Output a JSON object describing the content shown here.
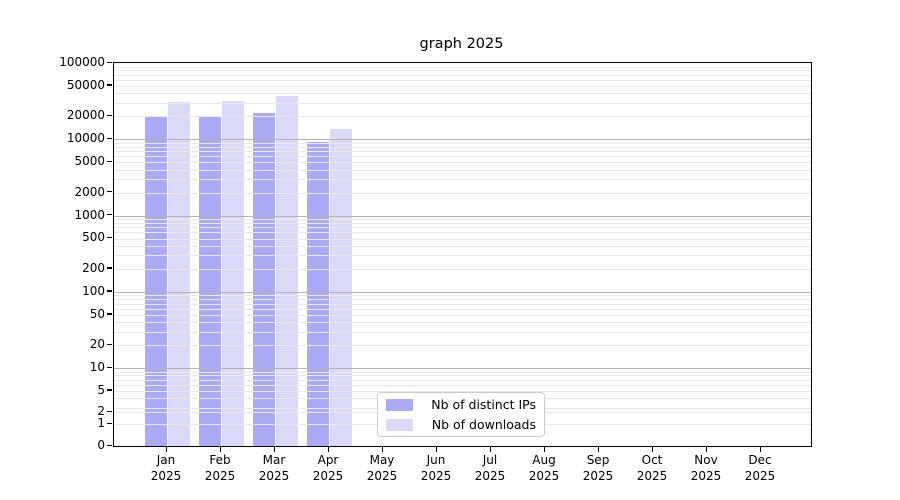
{
  "title": "graph 2025",
  "chart_data": {
    "type": "bar",
    "categories": [
      "Jan",
      "Feb",
      "Mar",
      "Apr",
      "May",
      "Jun",
      "Jul",
      "Aug",
      "Sep",
      "Oct",
      "Nov",
      "Dec"
    ],
    "x_year_sublabel": "2025",
    "series": [
      {
        "name": "Nb of distinct IPs",
        "color": "#aaaaf6",
        "values": [
          19600,
          19600,
          22200,
          9200,
          null,
          null,
          null,
          null,
          null,
          null,
          null,
          null
        ]
      },
      {
        "name": "Nb of downloads",
        "color": "#dadaf8",
        "values": [
          30400,
          31700,
          37200,
          13600,
          null,
          null,
          null,
          null,
          null,
          null,
          null,
          null
        ]
      }
    ],
    "yscale": "symlog",
    "ytick_labels": [
      "100000",
      "50000",
      "20000",
      "10000",
      "5000",
      "2000",
      "1000",
      "500",
      "200",
      "100",
      "50",
      "20",
      "10",
      "5",
      "2",
      "1",
      "0"
    ],
    "ytick_values": [
      100000,
      50000,
      20000,
      10000,
      5000,
      2000,
      1000,
      500,
      200,
      100,
      50,
      20,
      10,
      5,
      2,
      1,
      0
    ],
    "ylim": [
      0,
      100000
    ],
    "grid": "log minor + decade major, drawn over bars",
    "legend_position": "lower center",
    "colors": {
      "major_gridline": "#b4b4b4",
      "minor_gridline": "#e8e8e8",
      "axis": "#000000",
      "background": "#ffffff"
    }
  }
}
